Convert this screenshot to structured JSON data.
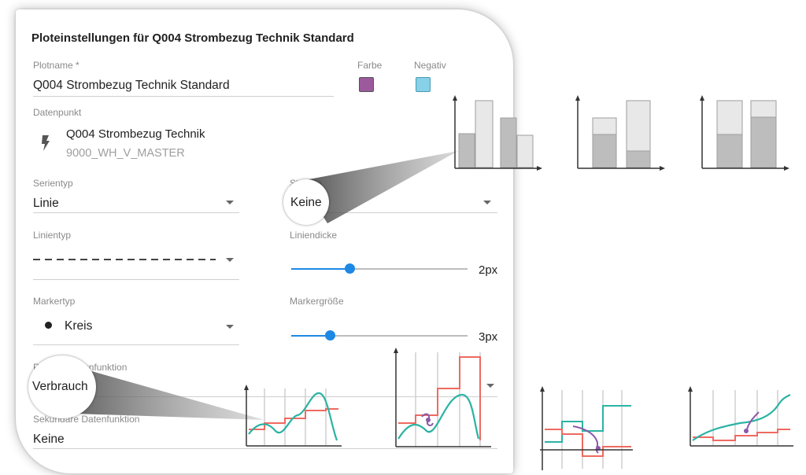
{
  "dialog": {
    "title": "Ploteinstellungen für Q004 Strombezug Technik Standard",
    "plotname": {
      "label": "Plotname *",
      "value": "Q004 Strombezug Technik Standard"
    },
    "farbe": {
      "label": "Farbe",
      "color": "#9c5a9c"
    },
    "negativ": {
      "label": "Negativ",
      "color": "#86d0e8"
    },
    "datenpunkt": {
      "label": "Datenpunkt",
      "name": "Q004 Strombezug Technik",
      "id": "9000_WH_V_MASTER",
      "icon": "bolt-icon"
    },
    "serientyp": {
      "label": "Serientyp",
      "value": "Linie"
    },
    "stapeln": {
      "label": "Stapeln",
      "value": "Keine"
    },
    "linientyp": {
      "label": "Linientyp"
    },
    "liniendicke": {
      "label": "Liniendicke",
      "value": "2px",
      "fraction": 0.33
    },
    "markertyp": {
      "label": "Markertyp",
      "value": "Kreis",
      "icon": "circle-marker-icon"
    },
    "markergroesse": {
      "label": "Markergröße",
      "value": "3px",
      "fraction": 0.22
    },
    "primaer": {
      "label": "Primäre Datenfunktion",
      "value": "Verbrauch"
    },
    "sekundaer": {
      "label": "Sekundäre Datenfunktion",
      "value": "Keine"
    }
  },
  "colors": {
    "accent": "#1e88e5",
    "teal": "#2bb3a3",
    "red": "#ee6a60",
    "purple": "#8c5aa8"
  }
}
